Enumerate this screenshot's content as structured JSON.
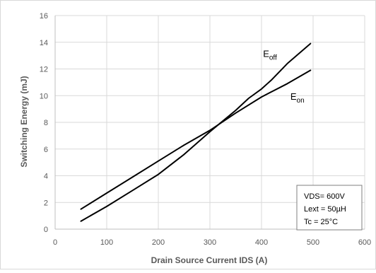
{
  "chart_data": {
    "type": "line",
    "title": "",
    "xlabel": "Drain Source Current IDS (A)",
    "ylabel": "Switching Energy (mJ)",
    "xlim": [
      0,
      600
    ],
    "ylim": [
      0,
      16
    ],
    "x_ticks": [
      0,
      100,
      200,
      300,
      400,
      500,
      600
    ],
    "y_ticks": [
      0,
      2,
      4,
      6,
      8,
      10,
      12,
      14,
      16
    ],
    "grid": true,
    "legend": "none",
    "series": [
      {
        "name_main": "E",
        "name_sub": "off",
        "color": "#000000",
        "x": [
          50,
          100,
          150,
          200,
          250,
          300,
          350,
          375,
          400,
          420,
          450,
          495
        ],
        "y": [
          0.6,
          1.7,
          2.9,
          4.1,
          5.6,
          7.3,
          8.9,
          9.8,
          10.5,
          11.2,
          12.4,
          13.9
        ]
      },
      {
        "name_main": "E",
        "name_sub": "on",
        "color": "#000000",
        "x": [
          50,
          100,
          150,
          200,
          250,
          300,
          350,
          400,
          450,
          495
        ],
        "y": [
          1.5,
          2.7,
          3.9,
          5.1,
          6.3,
          7.4,
          8.7,
          9.9,
          10.9,
          11.9
        ]
      }
    ],
    "annotations": [
      "VDS= 600V",
      "Lext = 50µH",
      "Tc = 25°C"
    ],
    "colors": {
      "grid": "#d9d9d9",
      "axis": "#bfbfbf",
      "tick_text": "#595959",
      "label_text": "#595959",
      "line": "#000000"
    }
  }
}
